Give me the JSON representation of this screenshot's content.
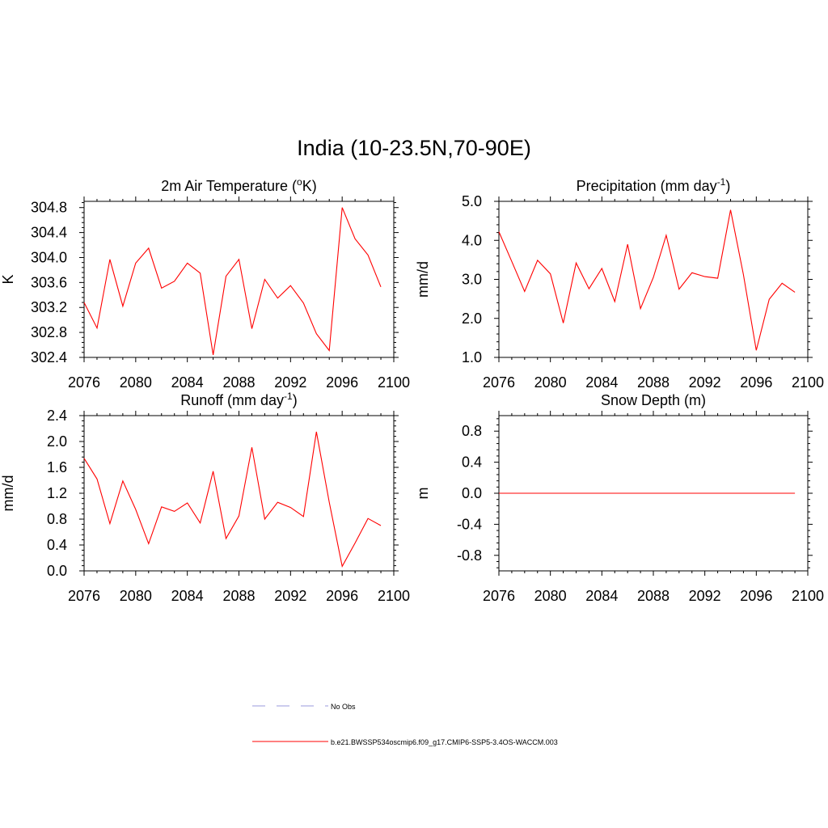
{
  "title": "India (10-23.5N,70-90E)",
  "chart_data": [
    {
      "type": "line",
      "title_main": "2m Air Temperature (",
      "title_sup": "o",
      "title_tail": "K)",
      "ylabel": "K",
      "xlim": [
        2076,
        2100
      ],
      "ylim": [
        302.4,
        304.9
      ],
      "xticks": [
        "2076",
        "2080",
        "2084",
        "2088",
        "2092",
        "2096",
        "2100"
      ],
      "yticks": [
        "302.4",
        "302.8",
        "303.2",
        "303.6",
        "304.0",
        "304.4",
        "304.8"
      ],
      "series": [
        {
          "name": "b.e21.BWSSP534oscmip6.f09_g17.CMIP6-SSP5-3.4OS-WACCM.003",
          "x": [
            2076,
            2077,
            2078,
            2079,
            2080,
            2081,
            2082,
            2083,
            2084,
            2085,
            2086,
            2087,
            2088,
            2089,
            2090,
            2091,
            2092,
            2093,
            2094,
            2095,
            2096,
            2097,
            2098,
            2099
          ],
          "y": [
            303.28,
            302.87,
            303.97,
            303.22,
            303.91,
            304.15,
            303.51,
            303.62,
            303.91,
            303.75,
            302.44,
            303.7,
            303.97,
            302.86,
            303.65,
            303.35,
            303.55,
            303.27,
            302.78,
            302.51,
            304.8,
            304.3,
            304.04,
            303.53
          ]
        }
      ]
    },
    {
      "type": "line",
      "title_main": "Precipitation (mm day",
      "title_sup": "-1",
      "title_tail": ")",
      "ylabel": "mm/d",
      "xlim": [
        2076,
        2100
      ],
      "ylim": [
        1.0,
        5.0
      ],
      "xticks": [
        "2076",
        "2080",
        "2084",
        "2088",
        "2092",
        "2096",
        "2100"
      ],
      "yticks": [
        "1.0",
        "2.0",
        "3.0",
        "4.0",
        "5.0"
      ],
      "series": [
        {
          "name": "b.e21.BWSSP534oscmip6.f09_g17.CMIP6-SSP5-3.4OS-WACCM.003",
          "x": [
            2076,
            2077,
            2078,
            2079,
            2080,
            2081,
            2082,
            2083,
            2084,
            2085,
            2086,
            2087,
            2088,
            2089,
            2090,
            2091,
            2092,
            2093,
            2094,
            2095,
            2096,
            2097,
            2098,
            2099
          ],
          "y": [
            4.22,
            3.46,
            2.69,
            3.49,
            3.14,
            1.88,
            3.42,
            2.76,
            3.28,
            2.43,
            3.9,
            2.25,
            3.05,
            4.13,
            2.75,
            3.17,
            3.07,
            3.03,
            4.78,
            3.12,
            1.18,
            2.49,
            2.9,
            2.67
          ]
        }
      ]
    },
    {
      "type": "line",
      "title_main": "Runoff (mm day",
      "title_sup": "-1",
      "title_tail": ")",
      "ylabel": "mm/d",
      "xlim": [
        2076,
        2100
      ],
      "ylim": [
        0.0,
        2.4
      ],
      "xticks": [
        "2076",
        "2080",
        "2084",
        "2088",
        "2092",
        "2096",
        "2100"
      ],
      "yticks": [
        "0.0",
        "0.4",
        "0.8",
        "1.2",
        "1.6",
        "2.0",
        "2.4"
      ],
      "series": [
        {
          "name": "b.e21.BWSSP534oscmip6.f09_g17.CMIP6-SSP5-3.4OS-WACCM.003",
          "x": [
            2076,
            2077,
            2078,
            2079,
            2080,
            2081,
            2082,
            2083,
            2084,
            2085,
            2086,
            2087,
            2088,
            2089,
            2090,
            2091,
            2092,
            2093,
            2094,
            2095,
            2096,
            2097,
            2098,
            2099
          ],
          "y": [
            1.74,
            1.42,
            0.73,
            1.39,
            0.95,
            0.42,
            0.99,
            0.92,
            1.05,
            0.74,
            1.54,
            0.5,
            0.85,
            1.91,
            0.8,
            1.06,
            0.98,
            0.84,
            2.15,
            1.06,
            0.07,
            0.43,
            0.81,
            0.7
          ]
        }
      ]
    },
    {
      "type": "line",
      "title_main": "Snow Depth (m)",
      "title_sup": "",
      "title_tail": "",
      "ylabel": "m",
      "xlim": [
        2076,
        2100
      ],
      "ylim": [
        -1.0,
        1.0
      ],
      "xticks": [
        "2076",
        "2080",
        "2084",
        "2088",
        "2092",
        "2096",
        "2100"
      ],
      "yticks": [
        "-0.8",
        "-0.4",
        "0.0",
        "0.4",
        "0.8"
      ],
      "series": [
        {
          "name": "b.e21.BWSSP534oscmip6.f09_g17.CMIP6-SSP5-3.4OS-WACCM.003",
          "x": [
            2076,
            2077,
            2078,
            2079,
            2080,
            2081,
            2082,
            2083,
            2084,
            2085,
            2086,
            2087,
            2088,
            2089,
            2090,
            2091,
            2092,
            2093,
            2094,
            2095,
            2096,
            2097,
            2098,
            2099
          ],
          "y": [
            0,
            0,
            0,
            0,
            0,
            0,
            0,
            0,
            0,
            0,
            0,
            0,
            0,
            0,
            0,
            0,
            0,
            0,
            0,
            0,
            0,
            0,
            0,
            0
          ]
        }
      ]
    }
  ],
  "legend": [
    {
      "label": "No Obs",
      "style": "dashed",
      "color": "#9999dd"
    },
    {
      "label": "b.e21.BWSSP534oscmip6.f09_g17.CMIP6-SSP5-3.4OS-WACCM.003",
      "style": "solid",
      "color": "#ff0000"
    }
  ],
  "colors": {
    "series": "#ff0000",
    "axis": "#000000"
  }
}
